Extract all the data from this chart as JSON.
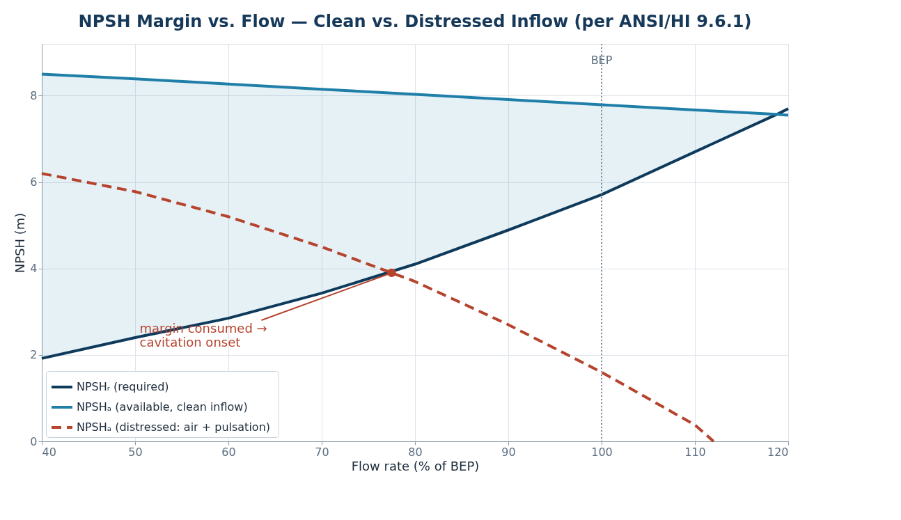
{
  "chart_data": {
    "type": "line",
    "title": "NPSH Margin vs. Flow — Clean vs. Distressed Inflow  (per ANSI/HI 9.6.1)",
    "xlabel": "Flow rate  (% of BEP)",
    "ylabel": "NPSH  (m)",
    "xlim": [
      40,
      120
    ],
    "ylim": [
      0,
      9.2
    ],
    "xticks": [
      40,
      50,
      60,
      70,
      80,
      90,
      100,
      110,
      120
    ],
    "yticks": [
      0,
      2,
      4,
      6,
      8
    ],
    "grid": true,
    "legend": "bottom left",
    "marker": "none",
    "series": [
      {
        "name": "NPSHᵣ  (required)",
        "color": "#0e3a5c",
        "line_style": "solid",
        "x": [
          40,
          50,
          60,
          70,
          80,
          90,
          100,
          110,
          118.8,
          120
        ],
        "values": [
          1.92,
          2.4,
          2.85,
          3.43,
          4.1,
          4.89,
          5.71,
          6.7,
          7.57,
          7.7
        ]
      },
      {
        "name": "NPSHₐ  (available, clean inflow)",
        "color": "#1f7fa8",
        "line_style": "solid",
        "x": [
          40,
          50,
          60,
          70,
          80,
          90,
          100,
          110,
          118.8,
          120
        ],
        "values": [
          8.5,
          8.39,
          8.27,
          8.15,
          8.03,
          7.91,
          7.79,
          7.67,
          7.57,
          7.55
        ],
        "lower": [
          1.92,
          2.4,
          2.85,
          3.43,
          4.1,
          4.89,
          5.71,
          6.7,
          7.57,
          null
        ],
        "upper": [
          8.5,
          8.39,
          8.27,
          8.15,
          8.03,
          7.91,
          7.79,
          7.67,
          7.57,
          null
        ]
      },
      {
        "name": "NPSHₐ  (distressed: air + pulsation)",
        "color": "#b5432e",
        "line_style": "dashed",
        "x": [
          40,
          50,
          60,
          70,
          80,
          90,
          100,
          110,
          112
        ],
        "values": [
          6.2,
          5.78,
          5.2,
          4.5,
          3.7,
          2.7,
          1.6,
          0.38,
          0
        ]
      },
      {
        "type": "scatter",
        "color": "#b5432e",
        "marker": "circle",
        "x": [
          77.5
        ],
        "values": [
          3.9
        ]
      }
    ],
    "ref_lines": [
      {
        "axis": "x",
        "value": 100,
        "label": "BEP",
        "color": "#5b6e80",
        "line_style": "dotted"
      }
    ],
    "annotations": [
      {
        "text": "margin consumed →\ncavitation onset",
        "x": 77.5,
        "y": 3.9
      }
    ]
  }
}
